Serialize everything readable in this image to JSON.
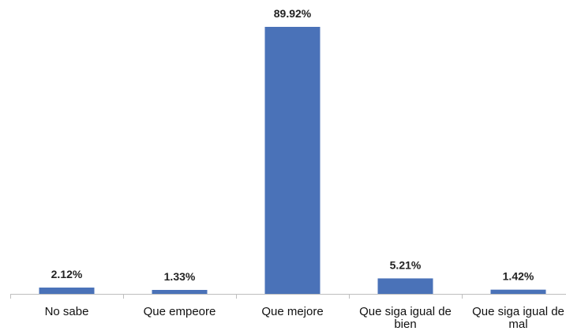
{
  "chart_data": {
    "type": "bar",
    "categories": [
      "No sabe",
      "Que empeore",
      "Que mejore",
      "Que siga igual de bien",
      "Que siga igual de mal"
    ],
    "category_lines": [
      [
        "No sabe"
      ],
      [
        "Que empeore"
      ],
      [
        "Que mejore"
      ],
      [
        "Que siga igual de",
        "bien"
      ],
      [
        "Que siga igual de",
        "mal"
      ]
    ],
    "values": [
      2.12,
      1.33,
      89.92,
      5.21,
      1.42
    ],
    "value_labels": [
      "2.12%",
      "1.33%",
      "89.92%",
      "5.21%",
      "1.42%"
    ],
    "title": "",
    "xlabel": "",
    "ylabel": "",
    "ylim": [
      0,
      100
    ],
    "grid": false,
    "legend": "none",
    "bar_color": "#4a72b8",
    "axis_color": "#bfbfbf"
  }
}
